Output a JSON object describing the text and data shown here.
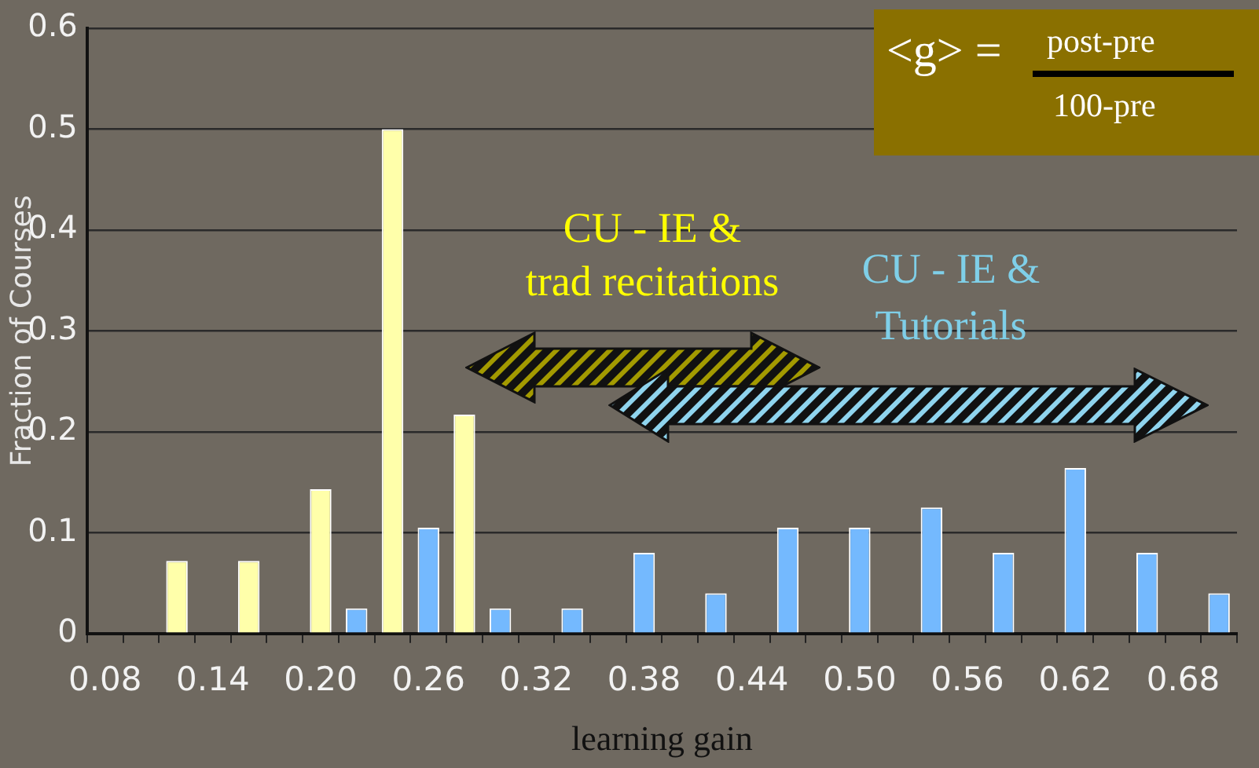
{
  "chart_data": {
    "type": "bar",
    "xlabel": "learning gain",
    "ylabel": "Fraction of Courses",
    "categories": [
      "0.08",
      null,
      null,
      "0.14",
      null,
      null,
      "0.20",
      null,
      null,
      "0.26",
      null,
      null,
      "0.32",
      null,
      null,
      "0.38",
      null,
      null,
      "0.44",
      null,
      null,
      "0.50",
      null,
      null,
      "0.56",
      null,
      null,
      "0.62",
      null,
      null,
      "0.68",
      null
    ],
    "series": [
      {
        "color": "#ffffaa",
        "values": [
          null,
          null,
          0.072,
          null,
          0.072,
          null,
          0.143,
          null,
          0.5,
          null,
          0.217,
          null,
          null,
          null,
          null,
          null,
          null,
          null,
          null,
          null,
          null,
          null,
          null,
          null,
          null,
          null,
          null,
          null,
          null,
          null,
          null,
          null
        ]
      },
      {
        "color": "#74b9fe",
        "values": [
          null,
          null,
          null,
          null,
          null,
          null,
          null,
          0.025,
          null,
          0.105,
          null,
          0.025,
          null,
          0.025,
          null,
          0.08,
          null,
          0.04,
          null,
          0.105,
          null,
          0.105,
          null,
          0.125,
          null,
          0.08,
          null,
          0.164,
          null,
          0.08,
          null,
          0.04
        ]
      }
    ],
    "stacked": true,
    "ylim": [
      0,
      0.6
    ],
    "yticks": [
      0,
      0.1,
      0.2,
      0.3,
      0.4,
      0.5,
      0.6
    ],
    "grid": "y",
    "legend": false,
    "annotations": [
      "CU - IE &\ntrad recitations",
      "CU - IE &\nTutorials",
      "<g> =",
      "post-pre",
      "100-pre"
    ]
  }
}
